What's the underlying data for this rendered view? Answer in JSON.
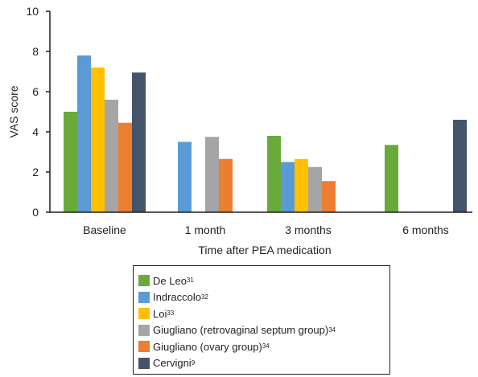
{
  "chart_data": {
    "type": "bar",
    "categories": [
      "Baseline",
      "1 month",
      "3 months",
      "6 months"
    ],
    "xlabel": "Time after PEA medication",
    "ylabel": "VAS score",
    "ylim": [
      0,
      10
    ],
    "yticks": [
      0,
      2,
      4,
      6,
      8,
      10
    ],
    "grid": false,
    "legend_position": "bottom",
    "series": [
      {
        "name": "De Leo",
        "ref": "31",
        "color": "#6aaa3a",
        "values": [
          5.0,
          null,
          3.8,
          3.35
        ]
      },
      {
        "name": "Indraccolo",
        "ref": "32",
        "color": "#5b9bd5",
        "values": [
          7.8,
          3.5,
          2.5,
          null
        ]
      },
      {
        "name": "Loi",
        "ref": "33",
        "color": "#ffc000",
        "values": [
          7.2,
          null,
          2.65,
          null
        ]
      },
      {
        "name": "Giugliano (retrovaginal septum group)",
        "ref": "34",
        "color": "#a5a5a5",
        "values": [
          5.6,
          3.75,
          2.25,
          null
        ]
      },
      {
        "name": "Giugliano (ovary group)",
        "ref": "34",
        "color": "#ed7d31",
        "values": [
          4.45,
          2.65,
          1.55,
          null
        ]
      },
      {
        "name": "Cervigni",
        "ref": "9",
        "color": "#44546a",
        "values": [
          6.95,
          null,
          null,
          4.6
        ]
      }
    ]
  }
}
